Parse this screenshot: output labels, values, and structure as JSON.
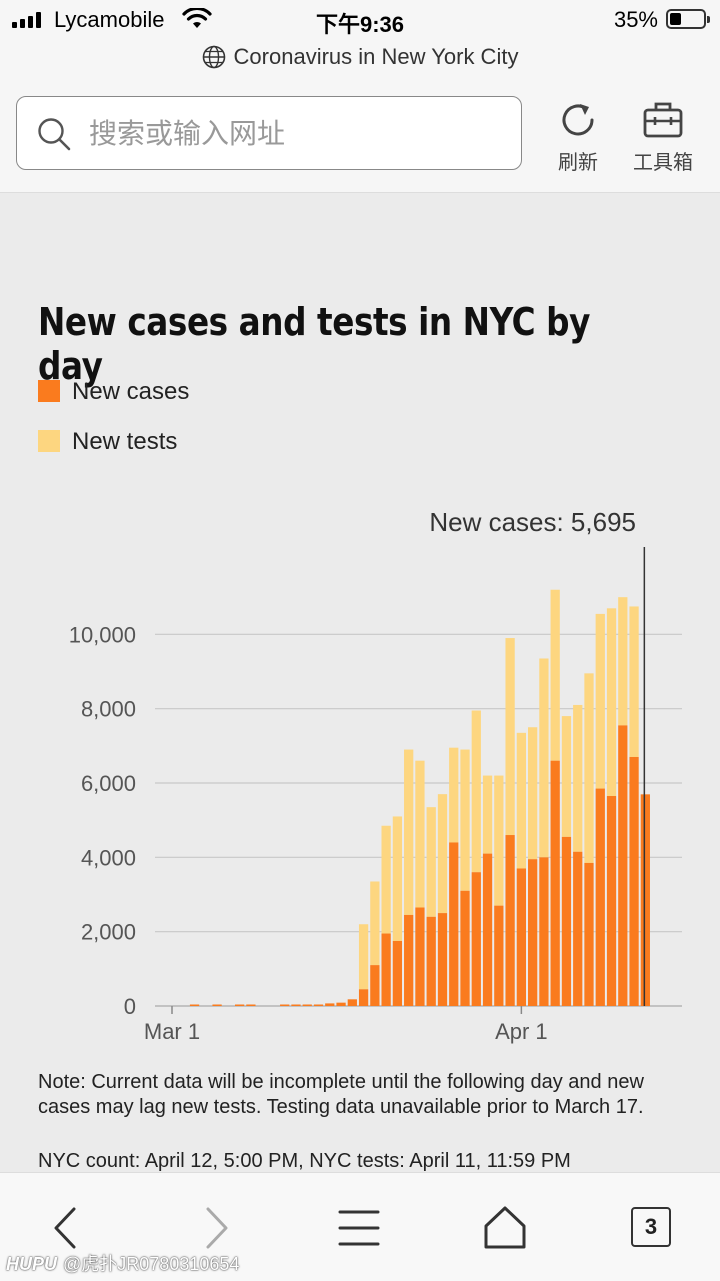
{
  "status": {
    "carrier": "Lycamobile",
    "time": "下午9:36",
    "battery": "35%",
    "battery_level": 0.35
  },
  "browser": {
    "page_title": "Coronavirus in New York City",
    "search_placeholder": "搜索或输入网址",
    "refresh_label": "刷新",
    "tools_label": "工具箱",
    "tab_count": "3"
  },
  "chart": {
    "title": "New cases and tests in NYC by day",
    "legend": {
      "cases": "New cases",
      "tests": "New tests"
    },
    "tooltip": "New cases: 5,695",
    "note": "Note: Current data will be incomplete until the following day and new cases may lag new tests. Testing data unavailable prior to March 17.",
    "count": "NYC count: April 12, 5:00 PM, NYC tests: April 11, 11:59 PM"
  },
  "colors": {
    "cases": "#fa7b1e",
    "tests": "#fdd680",
    "grid": "#c8c8c8"
  },
  "chart_data": {
    "type": "bar",
    "title": "New cases and tests in NYC by day",
    "xlabel": "",
    "ylabel": "",
    "ylim": [
      0,
      12000
    ],
    "yticks": [
      "0",
      "2,000",
      "4,000",
      "6,000",
      "8,000",
      "10,000"
    ],
    "xticks": [
      "Mar 1",
      "Apr 1"
    ],
    "categories": [
      "Mar 1",
      "Mar 2",
      "Mar 3",
      "Mar 4",
      "Mar 5",
      "Mar 6",
      "Mar 7",
      "Mar 8",
      "Mar 9",
      "Mar 10",
      "Mar 11",
      "Mar 12",
      "Mar 13",
      "Mar 14",
      "Mar 15",
      "Mar 16",
      "Mar 17",
      "Mar 18",
      "Mar 19",
      "Mar 20",
      "Mar 21",
      "Mar 22",
      "Mar 23",
      "Mar 24",
      "Mar 25",
      "Mar 26",
      "Mar 27",
      "Mar 28",
      "Mar 29",
      "Mar 30",
      "Mar 31",
      "Apr 1",
      "Apr 2",
      "Apr 3",
      "Apr 4",
      "Apr 5",
      "Apr 6",
      "Apr 7",
      "Apr 8",
      "Apr 9",
      "Apr 10",
      "Apr 11",
      "Apr 12"
    ],
    "series": [
      {
        "name": "New cases",
        "values": [
          0,
          0,
          10,
          0,
          10,
          0,
          10,
          10,
          0,
          0,
          20,
          30,
          40,
          40,
          70,
          90,
          180,
          450,
          1100,
          1950,
          1750,
          2450,
          2650,
          2400,
          2500,
          4400,
          3100,
          3600,
          4100,
          2700,
          4600,
          3700,
          3950,
          4000,
          6600,
          4550,
          4150,
          3850,
          5850,
          5650,
          7550,
          6700,
          5695
        ]
      },
      {
        "name": "New tests",
        "values": [
          0,
          0,
          0,
          0,
          0,
          0,
          0,
          0,
          0,
          0,
          0,
          0,
          0,
          0,
          0,
          0,
          0,
          1750,
          2250,
          2900,
          3350,
          4450,
          3950,
          2950,
          3200,
          2550,
          3800,
          4350,
          2100,
          3500,
          5300,
          3650,
          3550,
          5350,
          4600,
          3250,
          3950,
          5100,
          4700,
          5050,
          3450,
          4050,
          0
        ]
      }
    ],
    "highlight": {
      "category": "Apr 12",
      "label": "New cases: 5,695"
    },
    "grid": true,
    "legend_position": "top-left"
  }
}
